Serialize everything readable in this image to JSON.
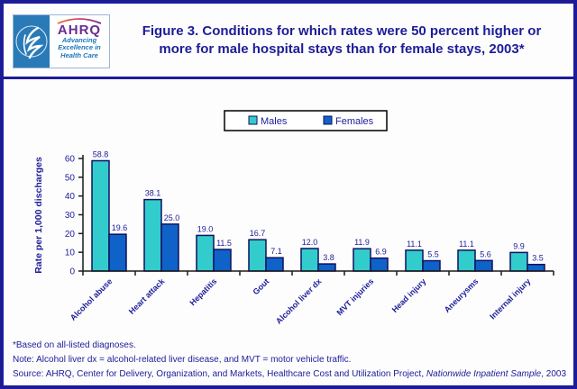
{
  "header": {
    "logo": {
      "ahrq_acronym": "AHRQ",
      "tagline_line1": "Advancing",
      "tagline_line2": "Excellence in",
      "tagline_line3": "Health Care"
    },
    "title": "Figure 3. Conditions for which rates were 50 percent higher or more for male hospital stays than for female stays, 2003*"
  },
  "chart_data": {
    "type": "bar",
    "categories": [
      "Alcohol abuse",
      "Heart attack",
      "Hepatitis",
      "Gout",
      "Alcohol liver dx",
      "MVT injuries",
      "Head injury",
      "Aneurysms",
      "Internal injury"
    ],
    "series": [
      {
        "name": "Males",
        "color": "#33cccc",
        "values": [
          58.8,
          38.1,
          19.0,
          16.7,
          12.0,
          11.9,
          11.1,
          11.1,
          9.9
        ]
      },
      {
        "name": "Females",
        "color": "#0f62c8",
        "values": [
          19.6,
          25.0,
          11.5,
          7.1,
          3.8,
          6.9,
          5.5,
          5.6,
          3.5
        ]
      }
    ],
    "ylabel": "Rate per 1,000 discharges",
    "xlabel": "",
    "ylim": [
      0,
      60
    ],
    "yticks": [
      0,
      10,
      20,
      30,
      40,
      50,
      60
    ],
    "legend_position": "top-center",
    "grid": false,
    "data_labels": true,
    "colors": {
      "text": "#1c1c99",
      "axis": "#1a1a1a",
      "bar_border": "#101060"
    }
  },
  "footnotes": {
    "line1": "*Based on all-listed diagnoses.",
    "line2": "Note: Alcohol liver dx = alcohol-related liver disease, and MVT = motor vehicle traffic.",
    "line3_prefix": "Source: AHRQ, Center for Delivery, Organization, and Markets, Healthcare Cost and Utilization Project, ",
    "line3_italic": "Nationwide Inpatient Sample",
    "line3_suffix": ", 2003"
  }
}
